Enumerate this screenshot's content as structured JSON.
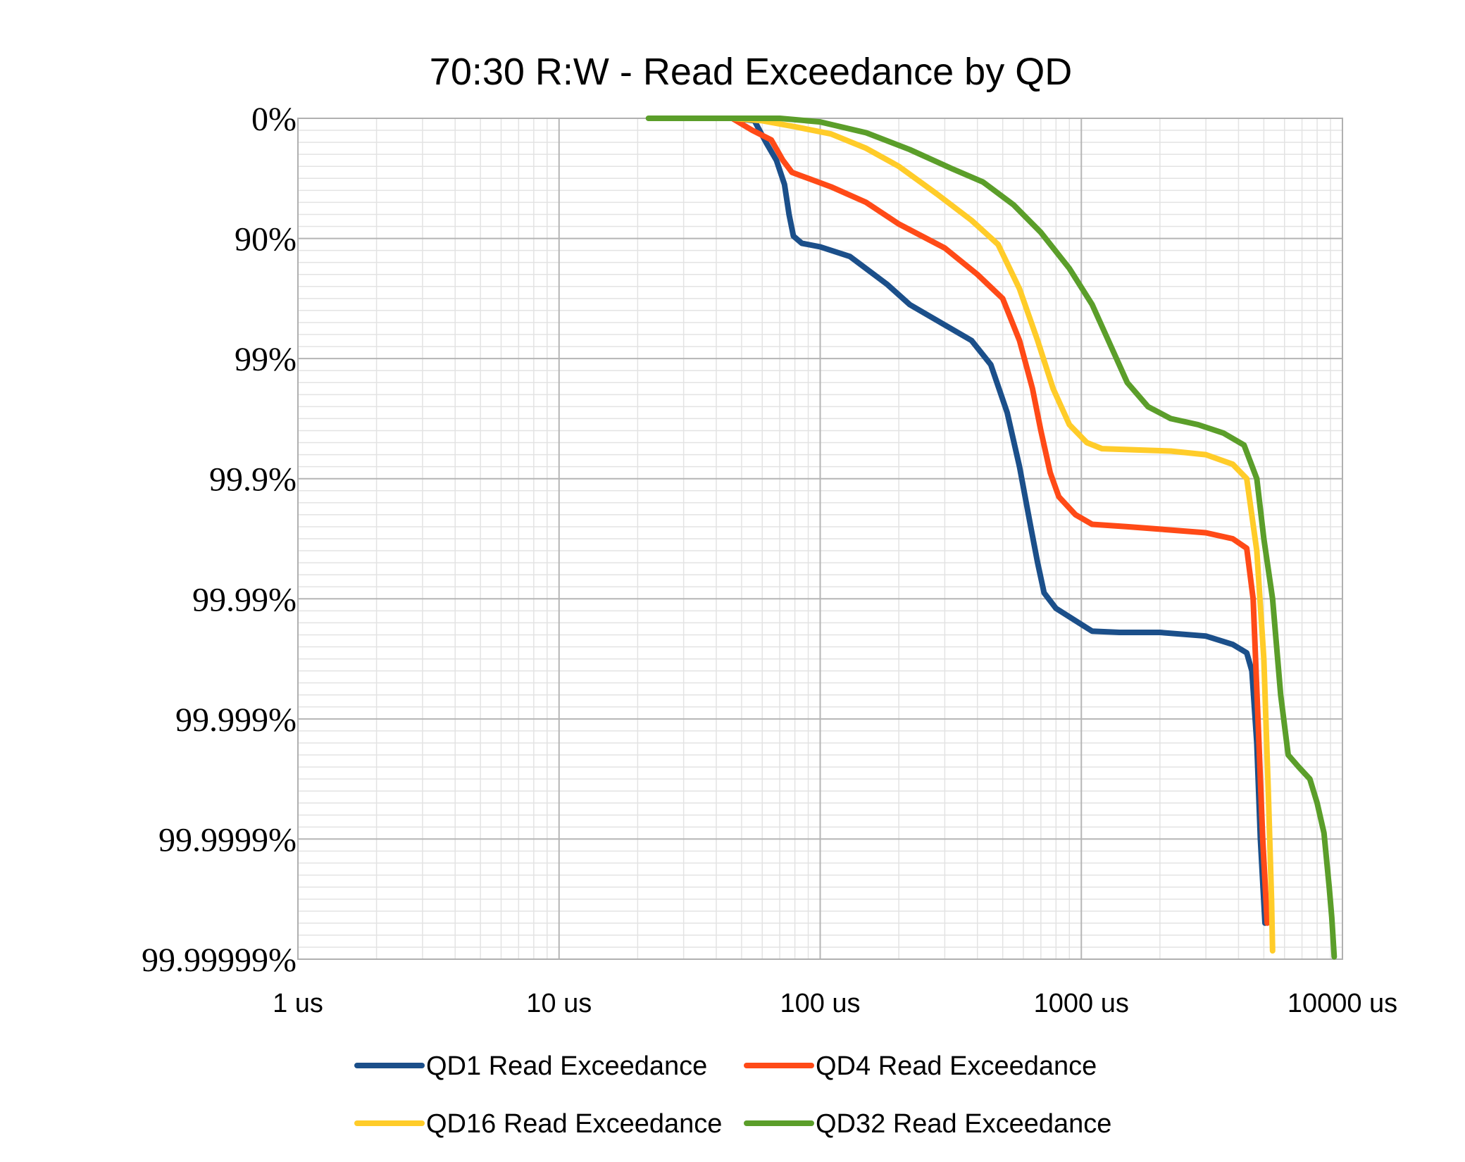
{
  "chart_data": {
    "type": "line",
    "title": "70:30 R:W - Read Exceedance by QD",
    "xlabel": "",
    "ylabel": "",
    "x_scale": "log",
    "xlim": [
      1,
      10000
    ],
    "x_ticks": [
      {
        "value": 1,
        "label": "1 us"
      },
      {
        "value": 10,
        "label": "10 us"
      },
      {
        "value": 100,
        "label": "100 us"
      },
      {
        "value": 1000,
        "label": "1000 us"
      },
      {
        "value": 10000,
        "label": "10000 us"
      }
    ],
    "y_scale": "reciprocal-log (nines)",
    "ylim_nines": [
      0,
      7
    ],
    "y_ticks": [
      {
        "nines": 0,
        "label": "0%"
      },
      {
        "nines": 1,
        "label": "90%"
      },
      {
        "nines": 2,
        "label": "99%"
      },
      {
        "nines": 3,
        "label": "99.9%"
      },
      {
        "nines": 4,
        "label": "99.99%"
      },
      {
        "nines": 5,
        "label": "99.999%"
      },
      {
        "nines": 6,
        "label": "99.9999%"
      },
      {
        "nines": 7,
        "label": "99.99999%"
      }
    ],
    "grid": true,
    "legend_position": "bottom",
    "series": [
      {
        "name": "QD1 Read Exceedance",
        "color": "#1B4F8A",
        "points": [
          [
            46,
            0.0
          ],
          [
            56,
            0.02
          ],
          [
            62,
            0.2
          ],
          [
            68,
            0.35
          ],
          [
            73,
            0.55
          ],
          [
            76,
            0.8
          ],
          [
            79,
            0.98
          ],
          [
            85,
            1.04
          ],
          [
            100,
            1.07
          ],
          [
            130,
            1.15
          ],
          [
            180,
            1.38
          ],
          [
            220,
            1.55
          ],
          [
            300,
            1.72
          ],
          [
            380,
            1.85
          ],
          [
            450,
            2.05
          ],
          [
            520,
            2.45
          ],
          [
            580,
            2.9
          ],
          [
            640,
            3.4
          ],
          [
            680,
            3.7
          ],
          [
            720,
            3.95
          ],
          [
            800,
            4.08
          ],
          [
            900,
            4.15
          ],
          [
            1100,
            4.27
          ],
          [
            1400,
            4.28
          ],
          [
            2000,
            4.28
          ],
          [
            3000,
            4.31
          ],
          [
            3800,
            4.38
          ],
          [
            4300,
            4.45
          ],
          [
            4500,
            4.6
          ],
          [
            4700,
            5.2
          ],
          [
            4850,
            6.0
          ],
          [
            5050,
            6.7
          ]
        ]
      },
      {
        "name": "QD4 Read Exceedance",
        "color": "#FF4A17",
        "points": [
          [
            46,
            0.0
          ],
          [
            55,
            0.1
          ],
          [
            65,
            0.18
          ],
          [
            72,
            0.35
          ],
          [
            78,
            0.45
          ],
          [
            90,
            0.5
          ],
          [
            110,
            0.57
          ],
          [
            150,
            0.7
          ],
          [
            200,
            0.88
          ],
          [
            300,
            1.08
          ],
          [
            400,
            1.3
          ],
          [
            500,
            1.5
          ],
          [
            580,
            1.85
          ],
          [
            650,
            2.25
          ],
          [
            700,
            2.6
          ],
          [
            760,
            2.95
          ],
          [
            820,
            3.15
          ],
          [
            950,
            3.3
          ],
          [
            1100,
            3.38
          ],
          [
            1500,
            3.4
          ],
          [
            2000,
            3.42
          ],
          [
            3000,
            3.45
          ],
          [
            3800,
            3.5
          ],
          [
            4300,
            3.58
          ],
          [
            4550,
            4.0
          ],
          [
            4750,
            5.0
          ],
          [
            4950,
            6.0
          ],
          [
            5150,
            6.7
          ]
        ]
      },
      {
        "name": "QD16 Read Exceedance",
        "color": "#FFCC29",
        "points": [
          [
            46,
            0.0
          ],
          [
            60,
            0.02
          ],
          [
            80,
            0.07
          ],
          [
            110,
            0.13
          ],
          [
            150,
            0.25
          ],
          [
            200,
            0.4
          ],
          [
            280,
            0.63
          ],
          [
            380,
            0.85
          ],
          [
            480,
            1.05
          ],
          [
            580,
            1.42
          ],
          [
            680,
            1.85
          ],
          [
            780,
            2.25
          ],
          [
            900,
            2.55
          ],
          [
            1050,
            2.7
          ],
          [
            1200,
            2.75
          ],
          [
            1600,
            2.76
          ],
          [
            2200,
            2.77
          ],
          [
            3000,
            2.8
          ],
          [
            3800,
            2.88
          ],
          [
            4300,
            3.0
          ],
          [
            4700,
            3.6
          ],
          [
            5000,
            4.5
          ],
          [
            5200,
            5.6
          ],
          [
            5350,
            6.5
          ],
          [
            5400,
            6.93
          ]
        ]
      },
      {
        "name": "QD32 Read Exceedance",
        "color": "#5B9E2A",
        "points": [
          [
            22,
            0.0
          ],
          [
            40,
            0.0
          ],
          [
            70,
            0.0
          ],
          [
            100,
            0.03
          ],
          [
            150,
            0.12
          ],
          [
            220,
            0.26
          ],
          [
            320,
            0.42
          ],
          [
            420,
            0.53
          ],
          [
            550,
            0.72
          ],
          [
            700,
            0.95
          ],
          [
            900,
            1.25
          ],
          [
            1100,
            1.55
          ],
          [
            1300,
            1.9
          ],
          [
            1500,
            2.2
          ],
          [
            1800,
            2.4
          ],
          [
            2200,
            2.5
          ],
          [
            2800,
            2.55
          ],
          [
            3500,
            2.62
          ],
          [
            4200,
            2.72
          ],
          [
            4700,
            3.0
          ],
          [
            5000,
            3.5
          ],
          [
            5400,
            4.0
          ],
          [
            5800,
            4.8
          ],
          [
            6200,
            5.3
          ],
          [
            6800,
            5.4
          ],
          [
            7500,
            5.5
          ],
          [
            8000,
            5.7
          ],
          [
            8500,
            5.95
          ],
          [
            8900,
            6.4
          ],
          [
            9100,
            6.65
          ],
          [
            9300,
            6.98
          ]
        ]
      }
    ]
  }
}
